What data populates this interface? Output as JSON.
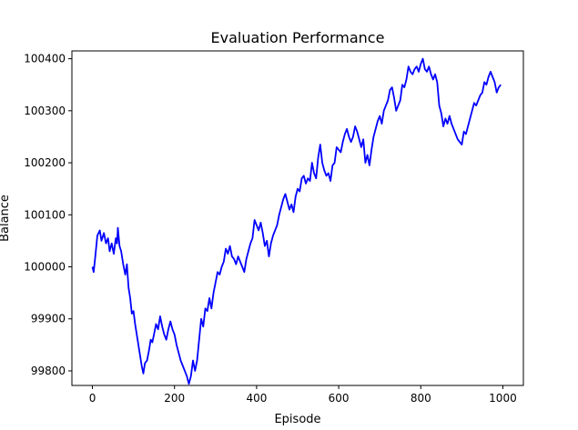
{
  "chart_data": {
    "type": "line",
    "title": "Evaluation Performance",
    "xlabel": "Episode",
    "ylabel": "Balance",
    "xlim": [
      -50,
      1050
    ],
    "ylim": [
      99772,
      100415
    ],
    "xticks": [
      0,
      200,
      400,
      600,
      800,
      1000
    ],
    "yticks": [
      99800,
      99900,
      100000,
      100100,
      100200,
      100300,
      100400
    ],
    "grid": false,
    "legend": "none",
    "series": [
      {
        "color": "#0000ff",
        "points": [
          [
            0,
            100000
          ],
          [
            3,
            99990
          ],
          [
            7,
            100020
          ],
          [
            12,
            100060
          ],
          [
            18,
            100070
          ],
          [
            22,
            100050
          ],
          [
            28,
            100065
          ],
          [
            33,
            100045
          ],
          [
            38,
            100055
          ],
          [
            42,
            100030
          ],
          [
            47,
            100045
          ],
          [
            52,
            100025
          ],
          [
            57,
            100055
          ],
          [
            60,
            100045
          ],
          [
            62,
            100075
          ],
          [
            66,
            100040
          ],
          [
            70,
            100030
          ],
          [
            75,
            100005
          ],
          [
            80,
            99985
          ],
          [
            84,
            100005
          ],
          [
            88,
            99960
          ],
          [
            92,
            99940
          ],
          [
            96,
            99910
          ],
          [
            100,
            99915
          ],
          [
            104,
            99890
          ],
          [
            108,
            99870
          ],
          [
            112,
            99850
          ],
          [
            116,
            99830
          ],
          [
            120,
            99810
          ],
          [
            124,
            99795
          ],
          [
            128,
            99815
          ],
          [
            133,
            99820
          ],
          [
            138,
            99840
          ],
          [
            142,
            99860
          ],
          [
            146,
            99855
          ],
          [
            150,
            99870
          ],
          [
            155,
            99890
          ],
          [
            160,
            99880
          ],
          [
            165,
            99905
          ],
          [
            170,
            99885
          ],
          [
            175,
            99870
          ],
          [
            180,
            99860
          ],
          [
            185,
            99880
          ],
          [
            190,
            99895
          ],
          [
            195,
            99880
          ],
          [
            200,
            99870
          ],
          [
            205,
            99850
          ],
          [
            210,
            99835
          ],
          [
            215,
            99820
          ],
          [
            220,
            99810
          ],
          [
            225,
            99800
          ],
          [
            230,
            99790
          ],
          [
            235,
            99775
          ],
          [
            240,
            99790
          ],
          [
            245,
            99820
          ],
          [
            250,
            99800
          ],
          [
            255,
            99820
          ],
          [
            260,
            99860
          ],
          [
            265,
            99900
          ],
          [
            270,
            99885
          ],
          [
            275,
            99920
          ],
          [
            280,
            99915
          ],
          [
            285,
            99940
          ],
          [
            290,
            99920
          ],
          [
            295,
            99950
          ],
          [
            300,
            99970
          ],
          [
            305,
            99990
          ],
          [
            310,
            99985
          ],
          [
            315,
            100000
          ],
          [
            320,
            100010
          ],
          [
            325,
            100035
          ],
          [
            330,
            100025
          ],
          [
            335,
            100040
          ],
          [
            340,
            100020
          ],
          [
            345,
            100015
          ],
          [
            350,
            100005
          ],
          [
            355,
            100020
          ],
          [
            360,
            100010
          ],
          [
            365,
            100000
          ],
          [
            370,
            99990
          ],
          [
            375,
            100015
          ],
          [
            380,
            100030
          ],
          [
            385,
            100045
          ],
          [
            390,
            100055
          ],
          [
            395,
            100090
          ],
          [
            400,
            100080
          ],
          [
            405,
            100070
          ],
          [
            410,
            100085
          ],
          [
            415,
            100065
          ],
          [
            420,
            100040
          ],
          [
            425,
            100050
          ],
          [
            430,
            100020
          ],
          [
            435,
            100045
          ],
          [
            440,
            100060
          ],
          [
            445,
            100070
          ],
          [
            450,
            100080
          ],
          [
            455,
            100100
          ],
          [
            460,
            100115
          ],
          [
            465,
            100130
          ],
          [
            470,
            100140
          ],
          [
            475,
            100125
          ],
          [
            480,
            100110
          ],
          [
            485,
            100120
          ],
          [
            490,
            100105
          ],
          [
            495,
            100135
          ],
          [
            500,
            100150
          ],
          [
            505,
            100145
          ],
          [
            510,
            100170
          ],
          [
            515,
            100175
          ],
          [
            520,
            100160
          ],
          [
            525,
            100170
          ],
          [
            530,
            100165
          ],
          [
            535,
            100200
          ],
          [
            540,
            100180
          ],
          [
            545,
            100170
          ],
          [
            550,
            100210
          ],
          [
            555,
            100235
          ],
          [
            560,
            100200
          ],
          [
            565,
            100185
          ],
          [
            570,
            100175
          ],
          [
            575,
            100180
          ],
          [
            580,
            100165
          ],
          [
            585,
            100195
          ],
          [
            590,
            100200
          ],
          [
            595,
            100230
          ],
          [
            600,
            100225
          ],
          [
            605,
            100220
          ],
          [
            610,
            100240
          ],
          [
            615,
            100255
          ],
          [
            620,
            100265
          ],
          [
            625,
            100250
          ],
          [
            630,
            100240
          ],
          [
            635,
            100250
          ],
          [
            640,
            100270
          ],
          [
            645,
            100260
          ],
          [
            650,
            100245
          ],
          [
            655,
            100230
          ],
          [
            660,
            100245
          ],
          [
            665,
            100200
          ],
          [
            670,
            100215
          ],
          [
            675,
            100195
          ],
          [
            680,
            100225
          ],
          [
            685,
            100250
          ],
          [
            690,
            100265
          ],
          [
            695,
            100280
          ],
          [
            700,
            100290
          ],
          [
            705,
            100275
          ],
          [
            710,
            100300
          ],
          [
            715,
            100310
          ],
          [
            720,
            100320
          ],
          [
            725,
            100340
          ],
          [
            730,
            100345
          ],
          [
            735,
            100325
          ],
          [
            740,
            100300
          ],
          [
            745,
            100310
          ],
          [
            750,
            100320
          ],
          [
            755,
            100350
          ],
          [
            760,
            100345
          ],
          [
            765,
            100360
          ],
          [
            770,
            100385
          ],
          [
            775,
            100375
          ],
          [
            780,
            100370
          ],
          [
            785,
            100380
          ],
          [
            790,
            100385
          ],
          [
            795,
            100375
          ],
          [
            800,
            100390
          ],
          [
            805,
            100400
          ],
          [
            810,
            100380
          ],
          [
            815,
            100375
          ],
          [
            820,
            100385
          ],
          [
            825,
            100370
          ],
          [
            830,
            100360
          ],
          [
            835,
            100370
          ],
          [
            840,
            100355
          ],
          [
            845,
            100310
          ],
          [
            850,
            100295
          ],
          [
            855,
            100270
          ],
          [
            860,
            100285
          ],
          [
            865,
            100275
          ],
          [
            870,
            100290
          ],
          [
            875,
            100275
          ],
          [
            880,
            100265
          ],
          [
            885,
            100255
          ],
          [
            890,
            100245
          ],
          [
            895,
            100240
          ],
          [
            900,
            100235
          ],
          [
            905,
            100260
          ],
          [
            910,
            100255
          ],
          [
            915,
            100270
          ],
          [
            920,
            100285
          ],
          [
            925,
            100300
          ],
          [
            930,
            100315
          ],
          [
            935,
            100310
          ],
          [
            940,
            100320
          ],
          [
            945,
            100330
          ],
          [
            950,
            100335
          ],
          [
            955,
            100355
          ],
          [
            960,
            100350
          ],
          [
            965,
            100365
          ],
          [
            970,
            100375
          ],
          [
            975,
            100365
          ],
          [
            980,
            100355
          ],
          [
            985,
            100335
          ],
          [
            990,
            100345
          ],
          [
            995,
            100350
          ]
        ]
      }
    ]
  }
}
